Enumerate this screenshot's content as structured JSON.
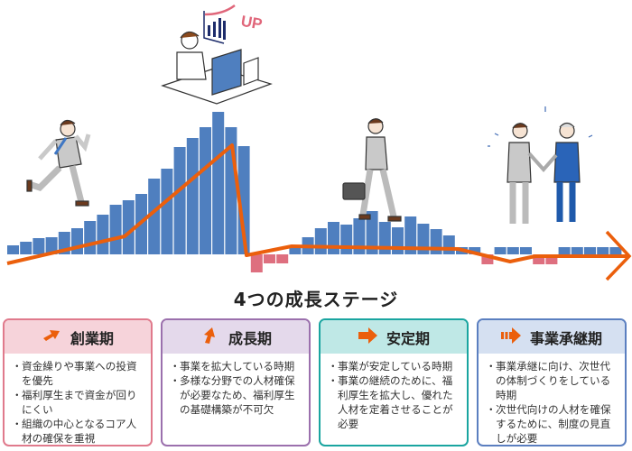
{
  "illustration": {
    "up_label": "UP",
    "colors": {
      "bar_positive": "#4f7fbf",
      "bar_negative": "#de6f7f",
      "trend_line": "#eb5f0c"
    }
  },
  "title": "4つの成長ステージ",
  "stages": [
    {
      "name": "創業期",
      "icon": "arrow-up-right-icon",
      "header_color": "#f6d3da",
      "border_color": "#e07a8c",
      "points": [
        "資金繰りや事業への投資を優先",
        "福利厚生まで資金が回りにくい",
        "組織の中心となるコア人材の確保を重視"
      ]
    },
    {
      "name": "成長期",
      "icon": "arrow-up-icon",
      "header_color": "#e4d9eb",
      "border_color": "#9b70ad",
      "points": [
        "事業を拡大している時期",
        "多様な分野での人材確保が必要なため、福利厚生の基礎構築が不可欠"
      ]
    },
    {
      "name": "安定期",
      "icon": "arrow-right-icon",
      "header_color": "#bfe8e6",
      "border_color": "#1aa5a0",
      "points": [
        "事業が安定している時期",
        "事業の継続のために、福利厚生を拡大し、優れた人材を定着させることが必要"
      ]
    },
    {
      "name": "事業承継期",
      "icon": "arrow-right-striped-icon",
      "header_color": "#d5e0f1",
      "border_color": "#5b7fc0",
      "points": [
        "事業承継に向け、次世代の体制づくりをしている時期",
        "次世代向けの人材を確保するために、制度の見直しが必要"
      ]
    }
  ]
}
